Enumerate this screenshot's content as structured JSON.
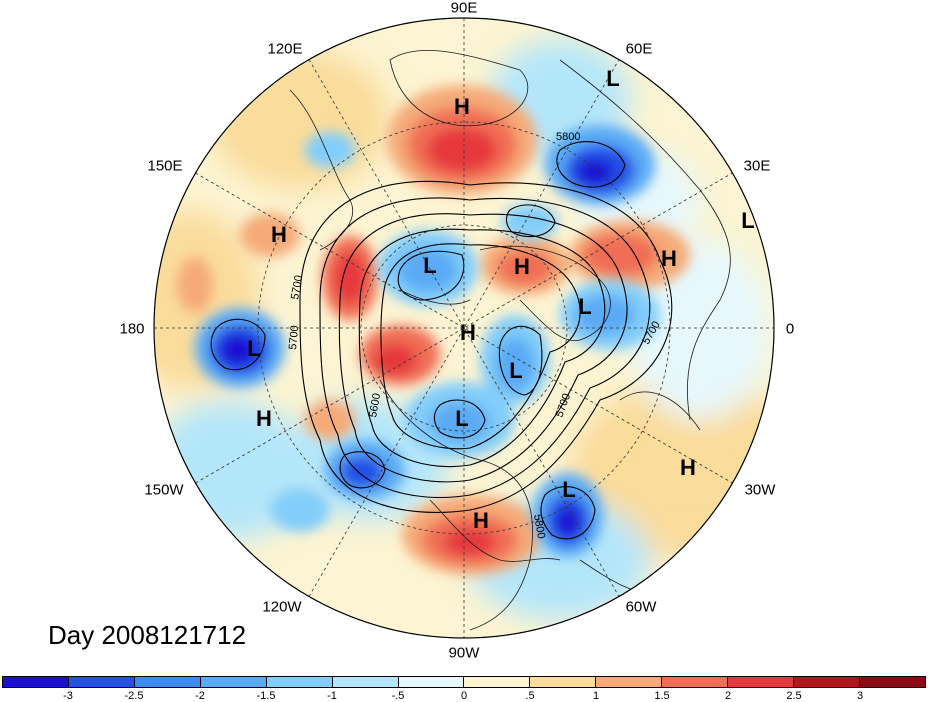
{
  "map": {
    "projection": "north-polar-stereographic",
    "field": "500 hPa height contours with shaded anomaly",
    "day_label": "Day 2008121712",
    "longitude_labels": [
      "90E",
      "60E",
      "30E",
      "0",
      "30W",
      "60W",
      "90W",
      "120W",
      "150W",
      "180",
      "150E",
      "120E"
    ],
    "contour_labels": [
      "5800",
      "5700",
      "5700",
      "5600",
      "5700",
      "5800",
      "5700"
    ],
    "centers": [
      {
        "type": "H",
        "region": "central Asia / Siberia"
      },
      {
        "type": "L",
        "region": "Ural / Kara Sea"
      },
      {
        "type": "L",
        "region": "Arabia"
      },
      {
        "type": "H",
        "region": "Eastern Europe"
      },
      {
        "type": "H",
        "region": "Kamchatka"
      },
      {
        "type": "L",
        "region": "East Siberian Sea"
      },
      {
        "type": "H",
        "region": "Barents Sea"
      },
      {
        "type": "L",
        "region": "Scandinavia / North Sea"
      },
      {
        "type": "H",
        "region": "North Pole"
      },
      {
        "type": "L",
        "region": "Baffin Bay / Greenland"
      },
      {
        "type": "L",
        "region": "North Pacific near Dateline"
      },
      {
        "type": "H",
        "region": "Central Pacific"
      },
      {
        "type": "L",
        "region": "Hudson Bay"
      },
      {
        "type": "H",
        "region": "Eastern Atlantic"
      },
      {
        "type": "L",
        "region": "Western Atlantic"
      },
      {
        "type": "H",
        "region": "Mexico / Gulf"
      }
    ]
  },
  "colorbar": {
    "ticks": [
      "-3",
      "-2.5",
      "-2",
      "-1.5",
      "-1",
      "-.5",
      "0",
      ".5",
      "1",
      "1.5",
      "2",
      "2.5",
      "3"
    ],
    "colors": [
      "#1a0fd2",
      "#2350e6",
      "#3c8cf0",
      "#5aaaf5",
      "#82cdfa",
      "#b4e6fa",
      "#e6f8fc",
      "#fcf4d2",
      "#fadc9b",
      "#f5aa78",
      "#f06e55",
      "#e6373c",
      "#b4141e",
      "#8c0a14"
    ]
  }
}
